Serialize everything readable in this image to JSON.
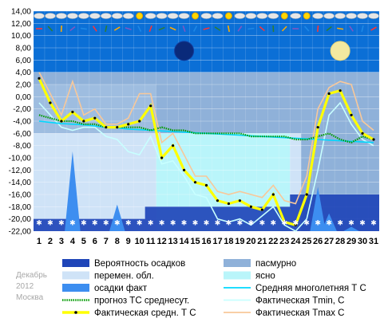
{
  "chart_data": {
    "type": "weather-chart",
    "yticks": [
      "14,00",
      "12,00",
      "10,00",
      "8,00",
      "6,00",
      "4,00",
      "2,00",
      "0,00",
      "-2,00",
      "-4,00",
      "-6,00",
      "-8,00",
      "-10,00",
      "-12,00",
      "-14,00",
      "-16,00",
      "-18,00",
      "-20,00",
      "-22,00"
    ],
    "ylim": [
      -22,
      14
    ],
    "days": [
      "1",
      "2",
      "3",
      "4",
      "5",
      "6",
      "7",
      "8",
      "9",
      "10",
      "11",
      "12",
      "13",
      "14",
      "15",
      "16",
      "17",
      "18",
      "19",
      "20",
      "21",
      "22",
      "23",
      "24",
      "25",
      "26",
      "27",
      "28",
      "29",
      "30",
      "31"
    ],
    "colors": {
      "plot_bg": "#0b6fd6",
      "overcast": "#8fb1d9",
      "partly": "#cfe3f7",
      "clear": "#b9f5fa",
      "precip_prob": "#1f45b8",
      "precip_fact": "#3d8ef0",
      "tavg": "#ffff00",
      "tmin": "#c8ffff",
      "tmax": "#f8c89a",
      "norm": "#00d8ff",
      "forecast": "#009a00"
    },
    "series": {
      "tavg": [
        3.0,
        -1.0,
        -4.0,
        -2.5,
        -4.0,
        -3.5,
        -5.0,
        -5.0,
        -4.5,
        -4.0,
        -1.5,
        -10.0,
        -8.0,
        -12.0,
        -14.0,
        -14.5,
        -17.0,
        -17.5,
        -17.0,
        -18.0,
        -18.5,
        -16.0,
        -20.5,
        -21.0,
        -16.0,
        -5.0,
        0.5,
        1.0,
        -3.0,
        -6.0,
        -7.0
      ],
      "tmin": [
        -1.0,
        -3.0,
        -5.0,
        -5.5,
        -5.0,
        -5.0,
        -6.5,
        -7.0,
        -9.0,
        -9.5,
        -6.5,
        -11.0,
        -10.5,
        -13.0,
        -16.0,
        -16.5,
        -20.0,
        -20.5,
        -20.0,
        -21.0,
        -19.5,
        -18.0,
        -21.0,
        -22.0,
        -20.0,
        -12.0,
        -3.0,
        -1.0,
        -4.5,
        -7.0,
        -8.0
      ],
      "tmax": [
        4.0,
        0.5,
        -3.0,
        2.5,
        -3.0,
        -2.0,
        -4.5,
        -4.5,
        -3.5,
        0.5,
        0.5,
        -7.5,
        -6.0,
        -9.5,
        -13.0,
        -13.0,
        -15.5,
        -16.0,
        -15.5,
        -16.0,
        -16.5,
        -14.5,
        -17.0,
        -17.5,
        -13.0,
        -2.0,
        1.5,
        2.5,
        2.0,
        -4.0,
        -5.5
      ],
      "forecast": [
        -3.0,
        -3.5,
        -4.0,
        -4.0,
        -4.5,
        -4.5,
        -5.0,
        -5.0,
        -5.0,
        -5.0,
        -5.5,
        -5.0,
        -5.5,
        -5.5,
        -6.0,
        -6.0,
        -6.0,
        -6.0,
        -6.0,
        -6.5,
        -6.5,
        -6.5,
        -6.5,
        -7.0,
        -7.0,
        -6.5,
        -6.0,
        -7.0,
        -7.5,
        -6.5,
        -7.0
      ],
      "norm": [
        -4.0,
        -4.2,
        -4.4,
        -4.5,
        -4.6,
        -4.8,
        -5.0,
        -5.1,
        -5.3,
        -5.4,
        -5.5,
        -5.6,
        -5.7,
        -5.8,
        -5.9,
        -6.0,
        -6.1,
        -6.2,
        -6.3,
        -6.4,
        -6.5,
        -6.6,
        -6.7,
        -6.8,
        -6.9,
        -7.0,
        -7.1,
        -7.2,
        -7.3,
        -7.4,
        -7.5
      ],
      "precip_fact": [
        0,
        0,
        0,
        9,
        0,
        0,
        0,
        3,
        0,
        0,
        0,
        0,
        0,
        0,
        0,
        0,
        0,
        0,
        0,
        0,
        0,
        0,
        0,
        0,
        0,
        5,
        2,
        0,
        0.5,
        0,
        0
      ],
      "precip_prob_level": [
        0.2,
        0.2,
        0.2,
        0.2,
        0.2,
        0.2,
        0.2,
        0.2,
        0.2,
        0.2,
        0.4,
        0.4,
        0.4,
        0.4,
        0.4,
        0.4,
        0.4,
        0.4,
        0.4,
        0.4,
        0.4,
        0.4,
        0.4,
        0.6,
        0.6,
        0.6,
        0.6,
        0.6,
        0.6,
        0.6,
        0.6
      ]
    },
    "moons": [
      {
        "phase": "new",
        "day": 14
      },
      {
        "phase": "full",
        "day": 28
      }
    ]
  },
  "legend": {
    "left": [
      {
        "key": "precip_prob",
        "label": "Вероятность осадков"
      },
      {
        "key": "partly",
        "label": "перемен. обл."
      },
      {
        "key": "precip_fact",
        "label": "осадки факт"
      },
      {
        "key": "forecast",
        "label": "прогноз ТС среднесут."
      },
      {
        "key": "tavg",
        "label": "Фактическая средн. Т С"
      }
    ],
    "right": [
      {
        "key": "overcast",
        "label": "пасмурно"
      },
      {
        "key": "clear",
        "label": "ясно"
      },
      {
        "key": "norm",
        "label": "Средняя многолетняя Т С"
      },
      {
        "key": "tmin",
        "label": "Фактическая Tmin, C"
      },
      {
        "key": "tmax",
        "label": "Фактическая Tmax C"
      }
    ]
  },
  "meta": {
    "month": "Декабрь",
    "year": "2012",
    "city": "Москва"
  }
}
